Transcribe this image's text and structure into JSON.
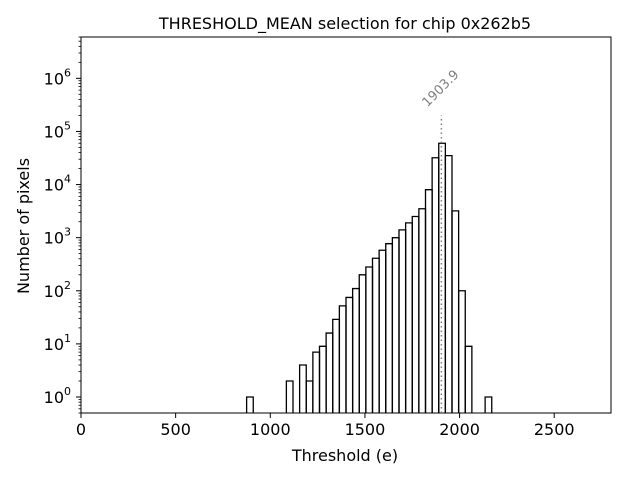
{
  "chart_data": {
    "type": "histogram",
    "title": "THRESHOLD_MEAN selection for chip 0x262b5",
    "xlabel": "Threshold (e)",
    "ylabel": "Number of pixels",
    "xlim": [
      0,
      2800
    ],
    "ylim": [
      0.5,
      6000000
    ],
    "y_scale": "log",
    "grid": false,
    "legend": "none",
    "x_ticks": [
      {
        "value": 0,
        "label": "0"
      },
      {
        "value": 500,
        "label": "500"
      },
      {
        "value": 1000,
        "label": "1000"
      },
      {
        "value": 1500,
        "label": "1500"
      },
      {
        "value": 2000,
        "label": "2000"
      },
      {
        "value": 2500,
        "label": "2500"
      }
    ],
    "y_ticks": [
      {
        "value": 1,
        "base": "10",
        "exp": "0"
      },
      {
        "value": 10,
        "base": "10",
        "exp": "1"
      },
      {
        "value": 100,
        "base": "10",
        "exp": "2"
      },
      {
        "value": 1000,
        "base": "10",
        "exp": "3"
      },
      {
        "value": 10000,
        "base": "10",
        "exp": "4"
      },
      {
        "value": 100000,
        "base": "10",
        "exp": "5"
      },
      {
        "value": 1000000,
        "base": "10",
        "exp": "6"
      }
    ],
    "bin_width": 35,
    "bins": [
      {
        "x0": 875,
        "count": 1
      },
      {
        "x0": 1085,
        "count": 2
      },
      {
        "x0": 1155,
        "count": 4
      },
      {
        "x0": 1190,
        "count": 2
      },
      {
        "x0": 1225,
        "count": 7
      },
      {
        "x0": 1260,
        "count": 9
      },
      {
        "x0": 1295,
        "count": 16
      },
      {
        "x0": 1330,
        "count": 29
      },
      {
        "x0": 1365,
        "count": 52
      },
      {
        "x0": 1400,
        "count": 75
      },
      {
        "x0": 1435,
        "count": 110
      },
      {
        "x0": 1470,
        "count": 200
      },
      {
        "x0": 1505,
        "count": 280
      },
      {
        "x0": 1540,
        "count": 410
      },
      {
        "x0": 1575,
        "count": 580
      },
      {
        "x0": 1610,
        "count": 770
      },
      {
        "x0": 1645,
        "count": 1000
      },
      {
        "x0": 1680,
        "count": 1400
      },
      {
        "x0": 1715,
        "count": 1900
      },
      {
        "x0": 1750,
        "count": 2500
      },
      {
        "x0": 1785,
        "count": 3500
      },
      {
        "x0": 1820,
        "count": 8000
      },
      {
        "x0": 1855,
        "count": 32000
      },
      {
        "x0": 1890,
        "count": 60000
      },
      {
        "x0": 1925,
        "count": 35000
      },
      {
        "x0": 1960,
        "count": 3200
      },
      {
        "x0": 1995,
        "count": 100
      },
      {
        "x0": 2030,
        "count": 9
      },
      {
        "x0": 2135,
        "count": 1
      }
    ],
    "annotation": {
      "x": 1903.9,
      "label": "1903.9",
      "line_top": 200000,
      "color": "#808080"
    }
  }
}
